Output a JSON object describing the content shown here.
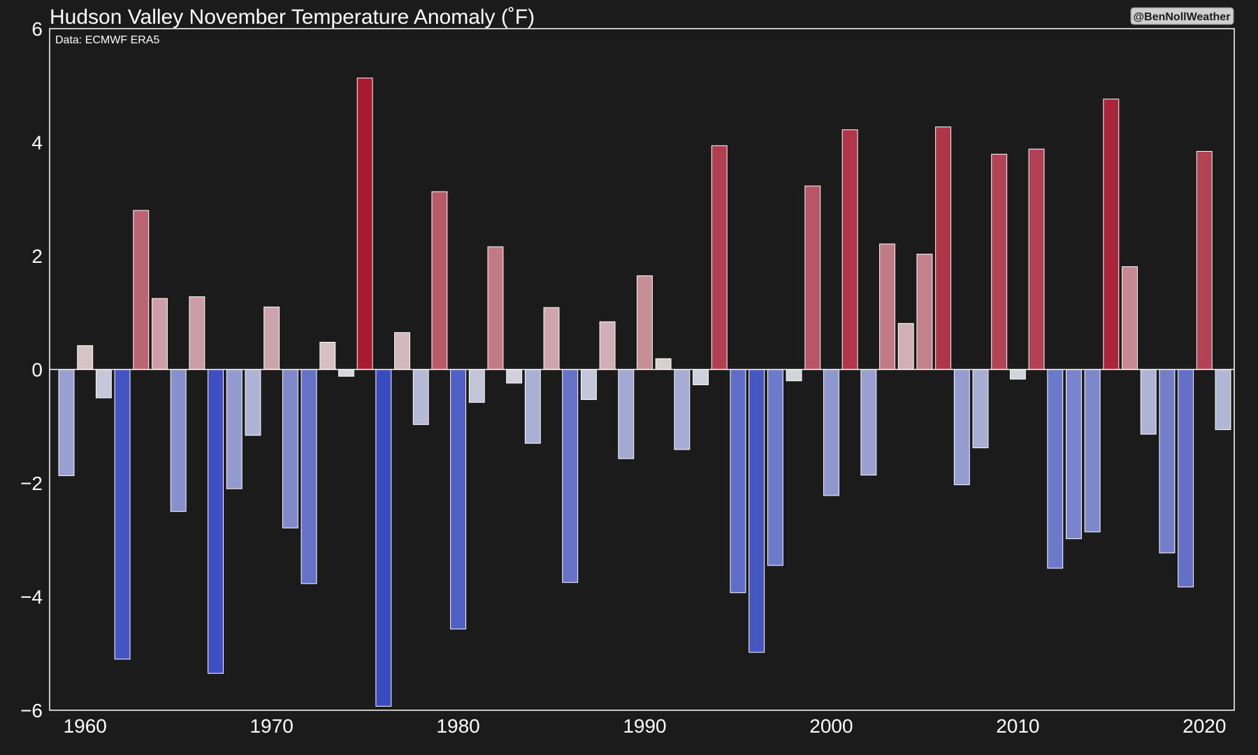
{
  "chart_data": {
    "type": "bar",
    "title": "Hudson Valley November Temperature Anomaly (˚F)",
    "annotation": "Data: ECMWF ERA5",
    "credit": "@BenNollWeather",
    "xlabel": "",
    "ylabel": "",
    "ylim": [
      -6,
      6
    ],
    "xlim": [
      1958.1,
      2021.6
    ],
    "yticks": [
      -6,
      -4,
      -2,
      0,
      2,
      4,
      6
    ],
    "xticks": [
      1960,
      1970,
      1980,
      1990,
      2000,
      2010,
      2020
    ],
    "grid": false,
    "colors": {
      "background": "#1b1b1b",
      "axes": "#ffffff",
      "warm_max": "#a50f26",
      "neutral": "#dddddd",
      "cold_max": "#3b4cc0"
    },
    "x": [
      1959,
      1960,
      1961,
      1962,
      1963,
      1964,
      1965,
      1966,
      1967,
      1968,
      1969,
      1970,
      1971,
      1972,
      1973,
      1974,
      1975,
      1976,
      1977,
      1978,
      1979,
      1980,
      1981,
      1982,
      1983,
      1984,
      1985,
      1986,
      1987,
      1988,
      1989,
      1990,
      1991,
      1992,
      1993,
      1994,
      1995,
      1996,
      1997,
      1998,
      1999,
      2000,
      2001,
      2002,
      2003,
      2004,
      2005,
      2006,
      2007,
      2008,
      2009,
      2010,
      2011,
      2012,
      2013,
      2014,
      2015,
      2016,
      2017,
      2018,
      2019,
      2020,
      2021
    ],
    "values": [
      -1.87,
      0.42,
      -0.5,
      -5.1,
      2.8,
      1.25,
      -2.5,
      1.28,
      -5.35,
      -2.1,
      -1.16,
      1.1,
      -2.79,
      -3.77,
      0.48,
      -0.12,
      5.13,
      -5.93,
      0.65,
      -0.97,
      3.13,
      -4.57,
      -0.58,
      2.16,
      -0.24,
      -1.3,
      1.09,
      -3.75,
      -0.53,
      0.84,
      -1.57,
      1.65,
      0.19,
      -1.41,
      -0.27,
      3.94,
      -3.93,
      -4.98,
      -3.45,
      -0.2,
      3.23,
      -2.22,
      4.22,
      -1.86,
      2.21,
      0.81,
      2.03,
      4.27,
      -2.03,
      -1.38,
      3.79,
      -0.17,
      3.88,
      -3.5,
      -2.98,
      -2.86,
      4.76,
      1.81,
      -1.14,
      -3.23,
      -3.83,
      3.84,
      -1.06
    ]
  }
}
